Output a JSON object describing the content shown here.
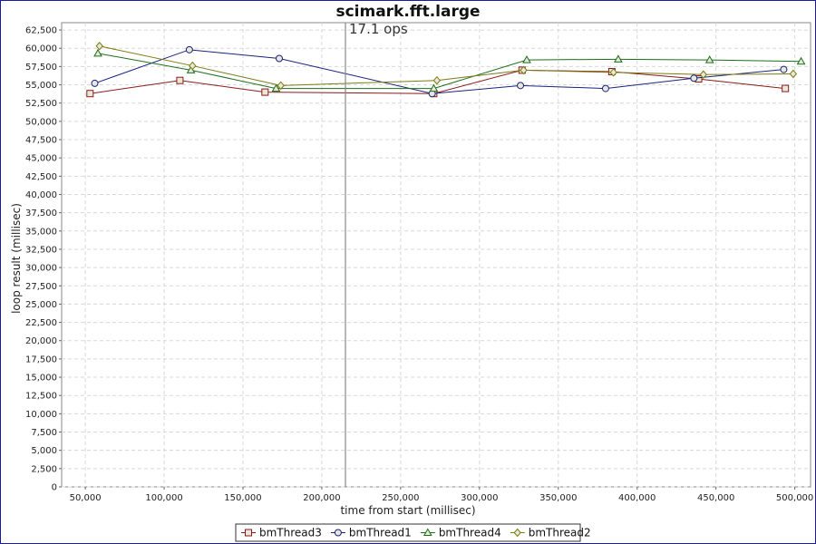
{
  "chart_data": {
    "type": "line",
    "title": "scimark.fft.large",
    "annotation": "17.1 ops",
    "marker_x": 215000,
    "xlabel": "time from start (millisec)",
    "ylabel": "loop result (millisec)",
    "xlim": [
      35000,
      510000
    ],
    "ylim": [
      0,
      63500
    ],
    "x_ticks": [
      50000,
      100000,
      150000,
      200000,
      250000,
      300000,
      350000,
      400000,
      450000,
      500000
    ],
    "x_tick_labels": [
      "50,000",
      "100,000",
      "150,000",
      "200,000",
      "250,000",
      "300,000",
      "350,000",
      "400,000",
      "450,000",
      "500,000"
    ],
    "y_ticks": [
      0,
      2500,
      5000,
      7500,
      10000,
      12500,
      15000,
      17500,
      20000,
      22500,
      25000,
      27500,
      30000,
      32500,
      35000,
      37500,
      40000,
      42500,
      45000,
      47500,
      50000,
      52500,
      55000,
      57500,
      60000,
      62500
    ],
    "y_tick_labels": [
      "0",
      "2,500",
      "5,000",
      "7,500",
      "10,000",
      "12,500",
      "15,000",
      "17,500",
      "20,000",
      "22,500",
      "25,000",
      "27,500",
      "30,000",
      "32,500",
      "35,000",
      "37,500",
      "40,000",
      "42,500",
      "45,000",
      "47,500",
      "50,000",
      "52,500",
      "55,000",
      "57,500",
      "60,000",
      "62,500"
    ],
    "grid": true,
    "legend_position": "bottom",
    "series": [
      {
        "name": "bmThread3",
        "color": "#8b1a1a",
        "marker": "square",
        "x": [
          53000,
          110000,
          164000,
          271000,
          327000,
          384000,
          439000,
          494000
        ],
        "y": [
          53800,
          55600,
          54000,
          53800,
          57000,
          56800,
          55800,
          54500
        ]
      },
      {
        "name": "bmThread1",
        "color": "#1a237e",
        "marker": "circle",
        "x": [
          56000,
          116000,
          173000,
          270000,
          326000,
          380000,
          436000,
          493000
        ],
        "y": [
          55200,
          59800,
          58600,
          53800,
          54900,
          54500,
          55900,
          57100
        ]
      },
      {
        "name": "bmThread4",
        "color": "#1b6e1b",
        "marker": "triangle",
        "x": [
          58000,
          117000,
          171000,
          271000,
          330000,
          388000,
          446000,
          504000
        ],
        "y": [
          59300,
          57000,
          54500,
          54500,
          58400,
          58500,
          58400,
          58200
        ]
      },
      {
        "name": "bmThread2",
        "color": "#7a7a10",
        "marker": "diamond",
        "x": [
          59000,
          118000,
          174000,
          273000,
          328000,
          385000,
          442000,
          499000
        ],
        "y": [
          60300,
          57600,
          54900,
          55600,
          57000,
          56700,
          56400,
          56500
        ]
      }
    ]
  }
}
